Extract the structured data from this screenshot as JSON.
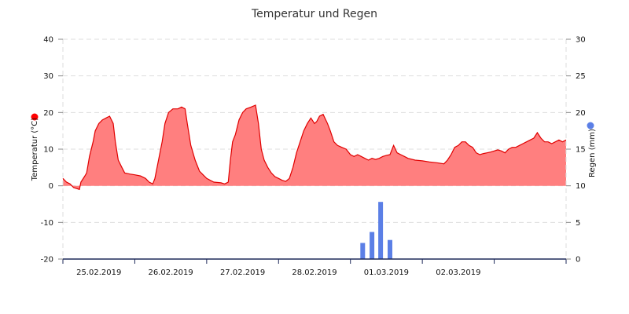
{
  "chart_data": {
    "title": "Temperatur und Regen",
    "type": "area+bar",
    "x_range_days": [
      0,
      7
    ],
    "x_categories": [
      "25.02.2019",
      "26.02.2019",
      "27.02.2019",
      "28.02.2019",
      "01.03.2019",
      "02.03.2019"
    ],
    "y_left": {
      "label": "Temperatur (°C)",
      "range": [
        -20,
        40
      ],
      "ticks": [
        -20,
        -10,
        0,
        10,
        20,
        30,
        40
      ],
      "legend_color": "#ff0000"
    },
    "y_right": {
      "label": "Regen (mm)",
      "range": [
        0,
        30
      ],
      "ticks": [
        0,
        5,
        10,
        15,
        20,
        25,
        30
      ],
      "legend_color": "#5b7fe6"
    },
    "grid": true,
    "series": [
      {
        "type": "area",
        "axis": "left",
        "stroke": "#e00000",
        "fill": "#ff7f7f",
        "points": [
          [
            0.0,
            2.0
          ],
          [
            0.05,
            1.0
          ],
          [
            0.1,
            0.5
          ],
          [
            0.15,
            -0.5
          ],
          [
            0.2,
            -0.8
          ],
          [
            0.23,
            -1.0
          ],
          [
            0.25,
            1.0
          ],
          [
            0.3,
            2.5
          ],
          [
            0.33,
            3.5
          ],
          [
            0.37,
            8.0
          ],
          [
            0.42,
            12.0
          ],
          [
            0.45,
            15.0
          ],
          [
            0.5,
            17.0
          ],
          [
            0.55,
            18.0
          ],
          [
            0.6,
            18.5
          ],
          [
            0.65,
            19.0
          ],
          [
            0.7,
            17.0
          ],
          [
            0.73,
            12.0
          ],
          [
            0.77,
            7.0
          ],
          [
            0.82,
            5.0
          ],
          [
            0.86,
            3.5
          ],
          [
            0.93,
            3.2
          ],
          [
            1.0,
            3.0
          ],
          [
            1.08,
            2.7
          ],
          [
            1.15,
            2.0
          ],
          [
            1.2,
            1.0
          ],
          [
            1.25,
            0.5
          ],
          [
            1.28,
            2.0
          ],
          [
            1.33,
            7.0
          ],
          [
            1.38,
            12.0
          ],
          [
            1.42,
            17.0
          ],
          [
            1.47,
            20.0
          ],
          [
            1.53,
            21.0
          ],
          [
            1.6,
            21.0
          ],
          [
            1.65,
            21.5
          ],
          [
            1.7,
            21.0
          ],
          [
            1.73,
            17.0
          ],
          [
            1.78,
            11.0
          ],
          [
            1.84,
            7.0
          ],
          [
            1.9,
            4.0
          ],
          [
            1.95,
            3.0
          ],
          [
            2.0,
            2.0
          ],
          [
            2.05,
            1.5
          ],
          [
            2.1,
            1.0
          ],
          [
            2.2,
            0.8
          ],
          [
            2.25,
            0.5
          ],
          [
            2.3,
            1.0
          ],
          [
            2.33,
            7.0
          ],
          [
            2.36,
            12.0
          ],
          [
            2.4,
            14.0
          ],
          [
            2.45,
            18.0
          ],
          [
            2.5,
            20.0
          ],
          [
            2.55,
            21.0
          ],
          [
            2.62,
            21.5
          ],
          [
            2.68,
            22.0
          ],
          [
            2.72,
            17.0
          ],
          [
            2.76,
            10.0
          ],
          [
            2.8,
            7.0
          ],
          [
            2.85,
            5.0
          ],
          [
            2.9,
            3.5
          ],
          [
            2.95,
            2.5
          ],
          [
            3.0,
            2.0
          ],
          [
            3.05,
            1.5
          ],
          [
            3.1,
            1.2
          ],
          [
            3.15,
            2.0
          ],
          [
            3.2,
            5.0
          ],
          [
            3.25,
            9.0
          ],
          [
            3.3,
            12.0
          ],
          [
            3.35,
            15.0
          ],
          [
            3.4,
            17.0
          ],
          [
            3.45,
            18.5
          ],
          [
            3.5,
            17.0
          ],
          [
            3.53,
            17.5
          ],
          [
            3.57,
            19.0
          ],
          [
            3.62,
            19.5
          ],
          [
            3.68,
            17.0
          ],
          [
            3.72,
            15.0
          ],
          [
            3.77,
            12.0
          ],
          [
            3.82,
            11.0
          ],
          [
            3.88,
            10.5
          ],
          [
            3.94,
            10.0
          ],
          [
            4.0,
            8.5
          ],
          [
            4.05,
            8.0
          ],
          [
            4.1,
            8.5
          ],
          [
            4.15,
            8.0
          ],
          [
            4.2,
            7.5
          ],
          [
            4.25,
            7.0
          ],
          [
            4.3,
            7.5
          ],
          [
            4.35,
            7.2
          ],
          [
            4.4,
            7.5
          ],
          [
            4.45,
            8.0
          ],
          [
            4.5,
            8.3
          ],
          [
            4.55,
            8.5
          ],
          [
            4.6,
            11.0
          ],
          [
            4.65,
            9.0
          ],
          [
            4.7,
            8.5
          ],
          [
            4.75,
            8.0
          ],
          [
            4.8,
            7.5
          ],
          [
            4.9,
            7.0
          ],
          [
            5.0,
            6.8
          ],
          [
            5.1,
            6.5
          ],
          [
            5.2,
            6.3
          ],
          [
            5.3,
            6.0
          ],
          [
            5.35,
            7.0
          ],
          [
            5.4,
            8.5
          ],
          [
            5.45,
            10.5
          ],
          [
            5.5,
            11.0
          ],
          [
            5.55,
            12.0
          ],
          [
            5.6,
            12.0
          ],
          [
            5.65,
            11.0
          ],
          [
            5.7,
            10.5
          ],
          [
            5.75,
            9.0
          ],
          [
            5.8,
            8.5
          ],
          [
            5.85,
            8.8
          ],
          [
            5.9,
            9.0
          ],
          [
            5.95,
            9.2
          ],
          [
            6.0,
            9.5
          ],
          [
            6.05,
            9.8
          ],
          [
            6.1,
            9.5
          ],
          [
            6.15,
            9.0
          ],
          [
            6.2,
            10.0
          ],
          [
            6.25,
            10.5
          ],
          [
            6.3,
            10.5
          ],
          [
            6.35,
            11.0
          ],
          [
            6.4,
            11.5
          ],
          [
            6.45,
            12.0
          ],
          [
            6.5,
            12.5
          ],
          [
            6.55,
            13.0
          ],
          [
            6.6,
            14.5
          ],
          [
            6.65,
            13.0
          ],
          [
            6.7,
            12.0
          ],
          [
            6.75,
            12.0
          ],
          [
            6.8,
            11.5
          ],
          [
            6.85,
            12.0
          ],
          [
            6.9,
            12.5
          ],
          [
            6.95,
            12.0
          ],
          [
            7.0,
            12.5
          ]
        ]
      },
      {
        "type": "bar",
        "axis": "right",
        "color": "#5b7fe6",
        "points": [
          [
            4.17,
            2.2
          ],
          [
            4.3,
            3.7
          ],
          [
            4.42,
            7.8
          ],
          [
            4.55,
            2.6
          ]
        ]
      }
    ]
  }
}
